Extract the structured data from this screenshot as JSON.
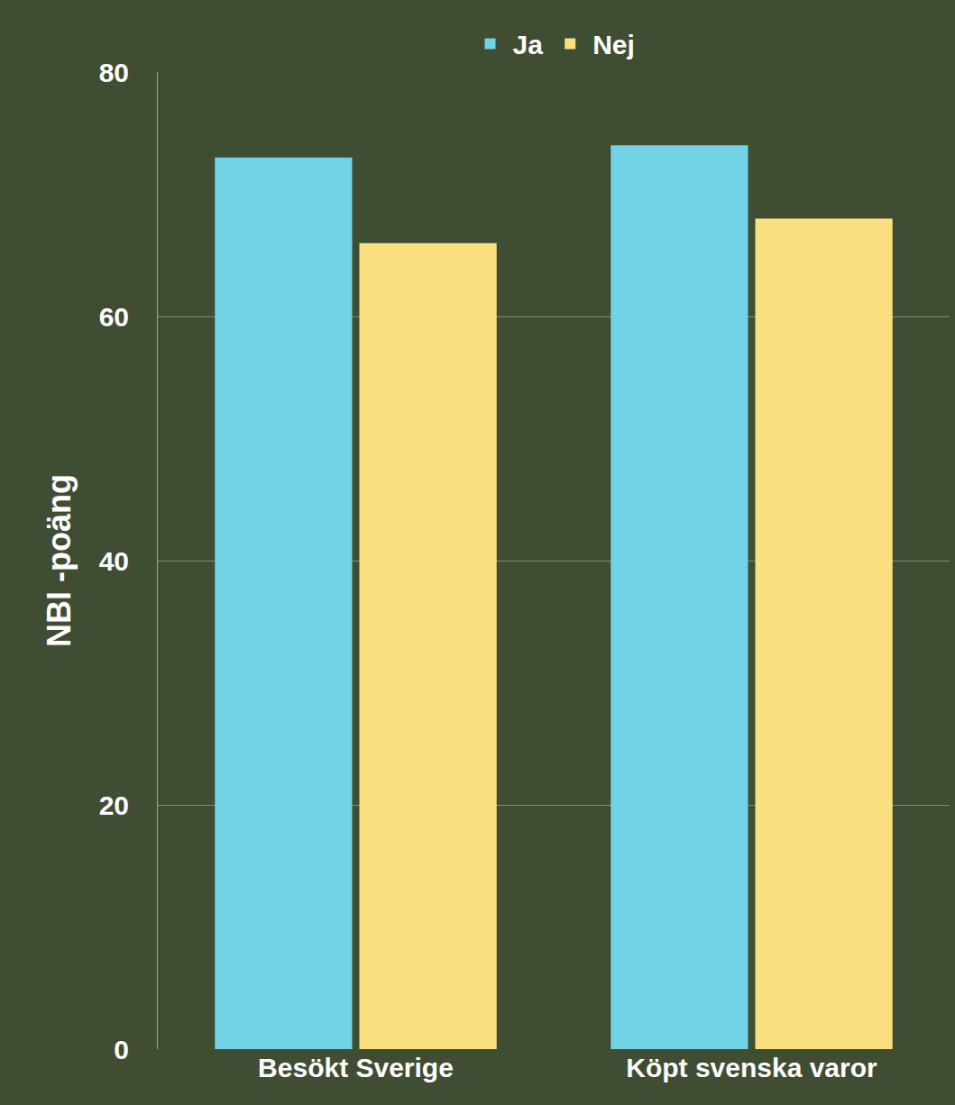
{
  "chart_data": {
    "type": "bar",
    "y_label": "NBI -poäng",
    "categories": [
      "Besökt Sverige",
      "Köpt svenska varor"
    ],
    "series": [
      {
        "name": "Ja",
        "color": "#72d3e6",
        "values": [
          73,
          74
        ]
      },
      {
        "name": "Nej",
        "color": "#fbe080",
        "values": [
          66,
          68
        ]
      }
    ],
    "ylim": [
      0,
      80
    ],
    "yticks": [
      0,
      20,
      40,
      60,
      80
    ],
    "grid": true,
    "legend": "top"
  }
}
